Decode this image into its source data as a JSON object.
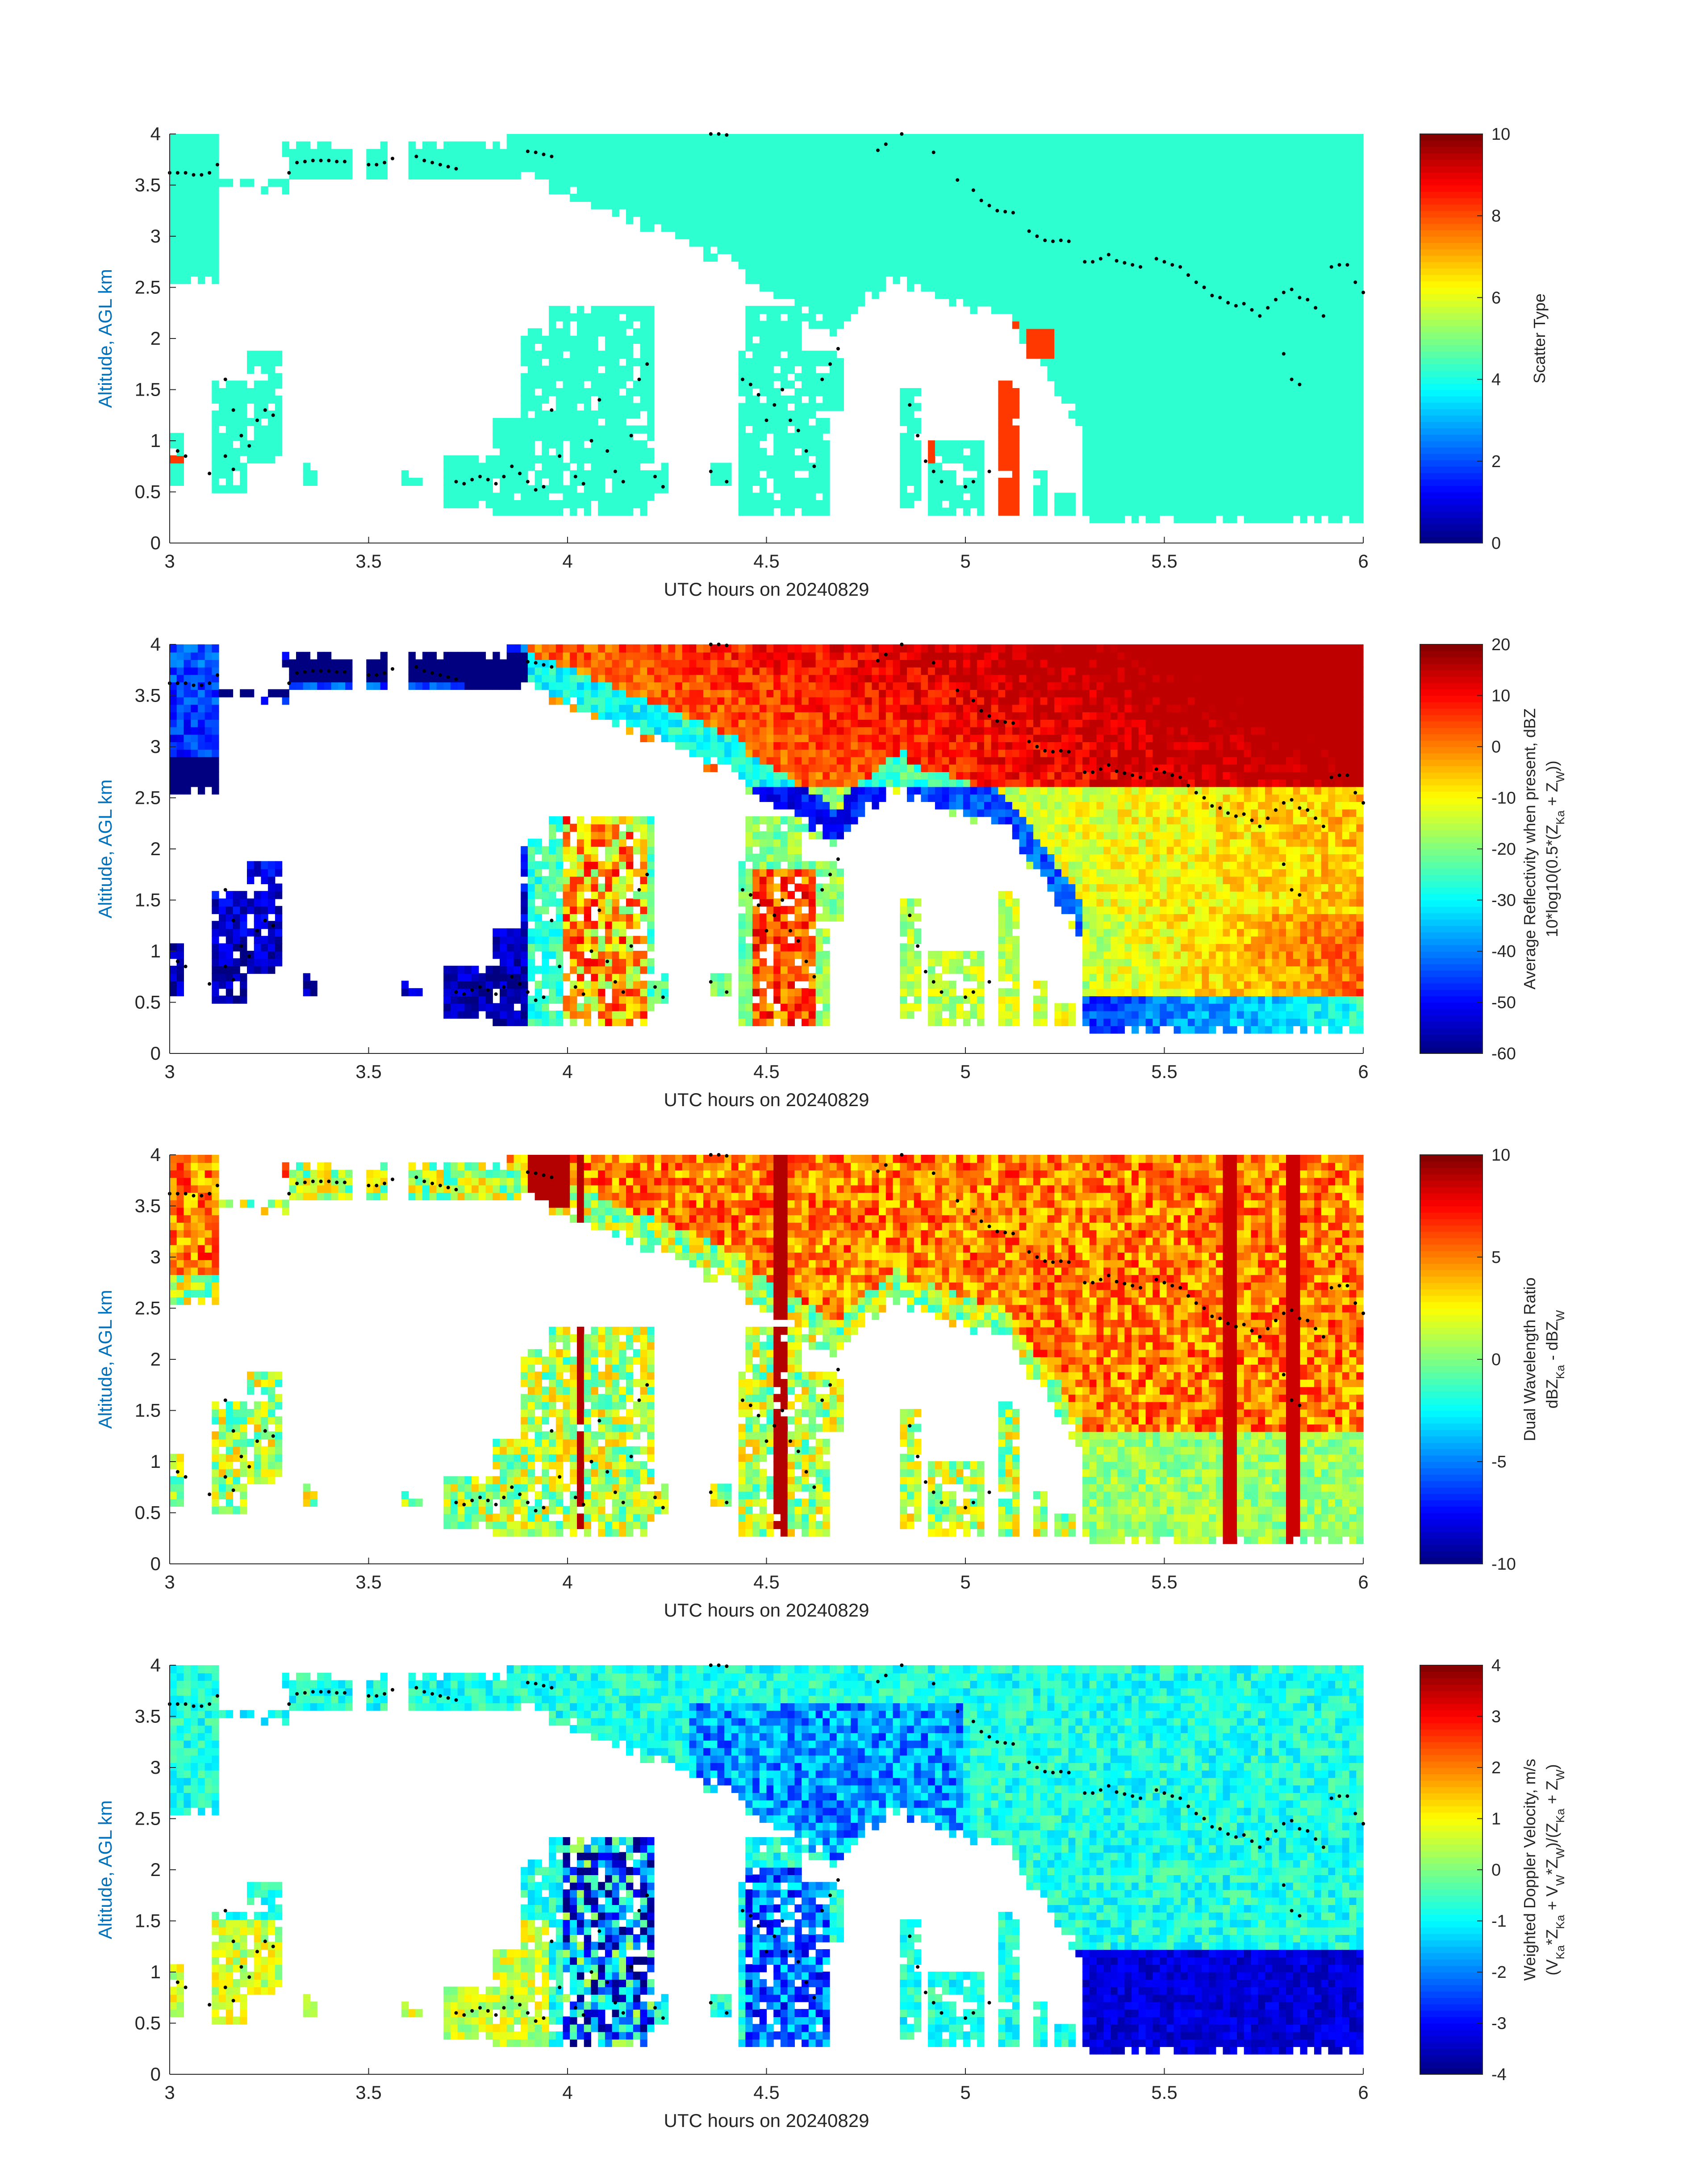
{
  "chart_data": [
    {
      "type": "heatmap",
      "field": "scatter_type",
      "xlabel": "UTC hours on 20240829",
      "ylabel": "Altitude, AGL km",
      "xlim": [
        3,
        6
      ],
      "ylim": [
        0,
        4
      ],
      "xticks": [
        "3",
        "3.5",
        "4",
        "4.5",
        "5",
        "5.5",
        "6"
      ],
      "yticks": [
        "0",
        "0.5",
        "1",
        "1.5",
        "2",
        "2.5",
        "3",
        "3.5",
        "4"
      ],
      "colorbar": {
        "label": "Scatter Type",
        "range": [
          0,
          10
        ],
        "ticks": [
          "0",
          "2",
          "4",
          "6",
          "8",
          "10"
        ],
        "colormap": "jet"
      },
      "dominant_value": 4.2,
      "secondary_value": 8.2
    },
    {
      "type": "heatmap",
      "field": "average_reflectivity",
      "xlabel": "UTC hours on 20240829",
      "ylabel": "Altitude, AGL km",
      "xlim": [
        3,
        6
      ],
      "ylim": [
        0,
        4
      ],
      "xticks": [
        "3",
        "3.5",
        "4",
        "4.5",
        "5",
        "5.5",
        "6"
      ],
      "yticks": [
        "0",
        "0.5",
        "1",
        "1.5",
        "2",
        "2.5",
        "3",
        "3.5",
        "4"
      ],
      "colorbar": {
        "label_lines": [
          "Average Reflectivity when present, dBZ",
          "10*log10(0.5*(Z",
          "Ka",
          " + Z",
          "W",
          "))"
        ],
        "range": [
          -60,
          20
        ],
        "ticks": [
          "-60",
          "-50",
          "-40",
          "-30",
          "-20",
          "-10",
          "0",
          "10",
          "20"
        ],
        "colormap": "jet"
      },
      "typical_range": [
        -55,
        12
      ]
    },
    {
      "type": "heatmap",
      "field": "dual_wavelength_ratio",
      "xlabel": "UTC hours on 20240829",
      "ylabel": "Altitude, AGL km",
      "xlim": [
        3,
        6
      ],
      "ylim": [
        0,
        4
      ],
      "xticks": [
        "3",
        "3.5",
        "4",
        "4.5",
        "5",
        "5.5",
        "6"
      ],
      "yticks": [
        "0",
        "0.5",
        "1",
        "1.5",
        "2",
        "2.5",
        "3",
        "3.5",
        "4"
      ],
      "colorbar": {
        "label_lines": [
          "Dual Wavelength Ratio",
          "dBZ",
          "Ka",
          " - dBZ",
          "W"
        ],
        "range": [
          -10,
          10
        ],
        "ticks": [
          "-10",
          "-5",
          "0",
          "5",
          "10"
        ],
        "colormap": "jet"
      },
      "typical_range": [
        -1,
        9
      ]
    },
    {
      "type": "heatmap",
      "field": "weighted_doppler_velocity",
      "xlabel": "UTC hours on 20240829",
      "ylabel": "Altitude, AGL km",
      "xlim": [
        3,
        6
      ],
      "ylim": [
        0,
        4
      ],
      "xticks": [
        "3",
        "3.5",
        "4",
        "4.5",
        "5",
        "5.5",
        "6"
      ],
      "yticks": [
        "0",
        "0.5",
        "1",
        "1.5",
        "2",
        "2.5",
        "3",
        "3.5",
        "4"
      ],
      "colorbar": {
        "label_lines": [
          "Weighted Doppler Velocity, m/s",
          "(V",
          "Ka",
          "*Z",
          "Ka",
          " + V",
          "W",
          "*Z",
          "W",
          ")/(Z",
          "Ka",
          " + Z",
          "W",
          ")"
        ],
        "range": [
          -4,
          4
        ],
        "ticks": [
          "-4",
          "-3",
          "-2",
          "-1",
          "0",
          "1",
          "2",
          "3",
          "4"
        ],
        "colormap": "jet"
      },
      "typical_range": [
        -3.8,
        1.5
      ]
    }
  ],
  "cloud_top_dots": {
    "description_free": true,
    "points": [
      [
        3.0,
        3.62
      ],
      [
        3.02,
        3.62
      ],
      [
        3.04,
        3.62
      ],
      [
        3.06,
        3.6
      ],
      [
        3.08,
        3.6
      ],
      [
        3.1,
        3.62
      ],
      [
        3.12,
        3.7
      ],
      [
        3.3,
        3.62
      ],
      [
        3.32,
        3.72
      ],
      [
        3.34,
        3.73
      ],
      [
        3.36,
        3.74
      ],
      [
        3.38,
        3.74
      ],
      [
        3.4,
        3.74
      ],
      [
        3.42,
        3.73
      ],
      [
        3.44,
        3.73
      ],
      [
        3.5,
        3.7
      ],
      [
        3.52,
        3.7
      ],
      [
        3.54,
        3.72
      ],
      [
        3.56,
        3.76
      ],
      [
        3.62,
        3.78
      ],
      [
        3.64,
        3.74
      ],
      [
        3.66,
        3.72
      ],
      [
        3.68,
        3.7
      ],
      [
        3.7,
        3.68
      ],
      [
        3.72,
        3.66
      ],
      [
        3.9,
        3.83
      ],
      [
        3.92,
        3.82
      ],
      [
        3.94,
        3.8
      ],
      [
        3.96,
        3.78
      ],
      [
        4.36,
        4.0
      ],
      [
        4.38,
        4.0
      ],
      [
        4.4,
        3.99
      ],
      [
        4.78,
        3.84
      ],
      [
        4.8,
        3.9
      ],
      [
        4.84,
        4.0
      ],
      [
        4.92,
        3.82
      ],
      [
        4.98,
        3.55
      ],
      [
        5.02,
        3.45
      ],
      [
        5.04,
        3.35
      ],
      [
        5.06,
        3.3
      ],
      [
        5.08,
        3.25
      ],
      [
        5.1,
        3.24
      ],
      [
        5.12,
        3.23
      ],
      [
        5.16,
        3.05
      ],
      [
        5.18,
        3.0
      ],
      [
        5.2,
        2.96
      ],
      [
        5.22,
        2.95
      ],
      [
        5.24,
        2.96
      ],
      [
        5.26,
        2.95
      ],
      [
        5.3,
        2.75
      ],
      [
        5.32,
        2.75
      ],
      [
        5.34,
        2.78
      ],
      [
        5.36,
        2.82
      ],
      [
        5.38,
        2.76
      ],
      [
        5.4,
        2.74
      ],
      [
        5.42,
        2.72
      ],
      [
        5.44,
        2.7
      ],
      [
        5.48,
        2.78
      ],
      [
        5.5,
        2.75
      ],
      [
        5.52,
        2.72
      ],
      [
        5.54,
        2.7
      ],
      [
        5.56,
        2.62
      ],
      [
        5.58,
        2.55
      ],
      [
        5.6,
        2.5
      ],
      [
        5.62,
        2.42
      ],
      [
        5.64,
        2.4
      ],
      [
        5.66,
        2.35
      ],
      [
        5.68,
        2.32
      ],
      [
        5.7,
        2.34
      ],
      [
        5.72,
        2.28
      ],
      [
        5.74,
        2.22
      ],
      [
        5.76,
        2.3
      ],
      [
        5.78,
        2.38
      ],
      [
        5.8,
        2.45
      ],
      [
        5.82,
        2.48
      ],
      [
        5.84,
        2.4
      ],
      [
        5.86,
        2.38
      ],
      [
        5.88,
        2.3
      ],
      [
        5.9,
        2.22
      ],
      [
        5.92,
        2.7
      ],
      [
        5.94,
        2.72
      ],
      [
        5.96,
        2.72
      ],
      [
        5.98,
        2.55
      ],
      [
        6.0,
        2.45
      ],
      [
        3.14,
        1.6
      ],
      [
        3.16,
        1.3
      ],
      [
        3.18,
        1.05
      ],
      [
        3.2,
        0.95
      ],
      [
        3.22,
        1.2
      ],
      [
        3.24,
        1.3
      ],
      [
        3.26,
        1.25
      ],
      [
        3.02,
        0.9
      ],
      [
        3.04,
        0.85
      ],
      [
        3.1,
        0.68
      ],
      [
        3.14,
        0.85
      ],
      [
        3.16,
        0.72
      ],
      [
        3.72,
        0.6
      ],
      [
        3.74,
        0.58
      ],
      [
        3.76,
        0.62
      ],
      [
        3.78,
        0.65
      ],
      [
        3.8,
        0.62
      ],
      [
        3.82,
        0.58
      ],
      [
        3.84,
        0.65
      ],
      [
        3.86,
        0.75
      ],
      [
        3.88,
        0.68
      ],
      [
        3.9,
        0.6
      ],
      [
        3.92,
        0.52
      ],
      [
        3.94,
        0.55
      ],
      [
        3.96,
        1.3
      ],
      [
        3.98,
        0.85
      ],
      [
        4.02,
        0.65
      ],
      [
        4.04,
        0.58
      ],
      [
        4.06,
        1.0
      ],
      [
        4.08,
        1.4
      ],
      [
        4.1,
        0.9
      ],
      [
        4.12,
        0.7
      ],
      [
        4.14,
        0.6
      ],
      [
        4.16,
        1.05
      ],
      [
        4.18,
        1.6
      ],
      [
        4.2,
        1.75
      ],
      [
        4.22,
        0.65
      ],
      [
        4.24,
        0.55
      ],
      [
        4.36,
        0.7
      ],
      [
        4.4,
        0.6
      ],
      [
        4.44,
        1.6
      ],
      [
        4.46,
        1.55
      ],
      [
        4.48,
        1.45
      ],
      [
        4.5,
        1.2
      ],
      [
        4.52,
        1.35
      ],
      [
        4.54,
        1.5
      ],
      [
        4.56,
        1.2
      ],
      [
        4.58,
        1.1
      ],
      [
        4.6,
        0.9
      ],
      [
        4.62,
        0.75
      ],
      [
        4.64,
        1.6
      ],
      [
        4.66,
        1.75
      ],
      [
        4.68,
        1.9
      ],
      [
        4.86,
        1.35
      ],
      [
        4.88,
        1.05
      ],
      [
        4.9,
        0.8
      ],
      [
        4.92,
        0.7
      ],
      [
        4.94,
        0.6
      ],
      [
        5.0,
        0.55
      ],
      [
        5.02,
        0.6
      ],
      [
        5.06,
        0.7
      ],
      [
        5.8,
        1.85
      ],
      [
        5.82,
        1.6
      ],
      [
        5.84,
        1.55
      ]
    ]
  }
}
